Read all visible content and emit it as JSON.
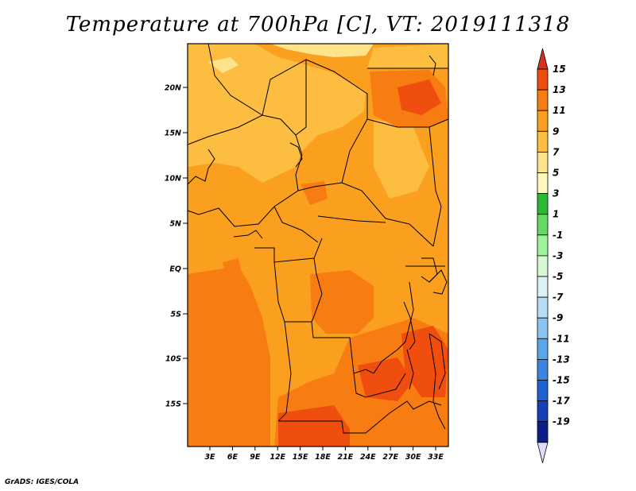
{
  "title": "Temperature at 700hPa [C], VT: 2019111318",
  "credit": "GrADS: IGES/COLA",
  "lat_ticks": [
    "20N",
    "15N",
    "10N",
    "5N",
    "EQ",
    "5S",
    "10S",
    "15S"
  ],
  "lon_ticks": [
    "3E",
    "6E",
    "9E",
    "12E",
    "15E",
    "18E",
    "21E",
    "24E",
    "27E",
    "30E",
    "33E"
  ],
  "colorbar": {
    "labels": [
      "15",
      "13",
      "11",
      "9",
      "7",
      "5",
      "3",
      "1",
      "-1",
      "-3",
      "-5",
      "-7",
      "-9",
      "-11",
      "-13",
      "-15",
      "-17",
      "-19"
    ],
    "colors": [
      "#d7301f",
      "#f04e0f",
      "#f77d13",
      "#fba01e",
      "#fdbd41",
      "#fee38a",
      "#fff8bd",
      "#2cb934",
      "#66d965",
      "#9ef29b",
      "#d6f8d4",
      "#dcf0f7",
      "#b7dcf6",
      "#8cc4f1",
      "#5aa6ea",
      "#3b84e0",
      "#1f60d2",
      "#1640b6",
      "#0b1e8a",
      "#000a5c"
    ],
    "top_arrow_color": "#d7301f",
    "bottom_arrow_color": "#dcdcf8"
  },
  "field_colors": {
    "base": "#fba01e",
    "warm": "#f77d13",
    "hot": "#f04e0f",
    "cool": "#fdbd41",
    "cooler": "#fee38a"
  }
}
